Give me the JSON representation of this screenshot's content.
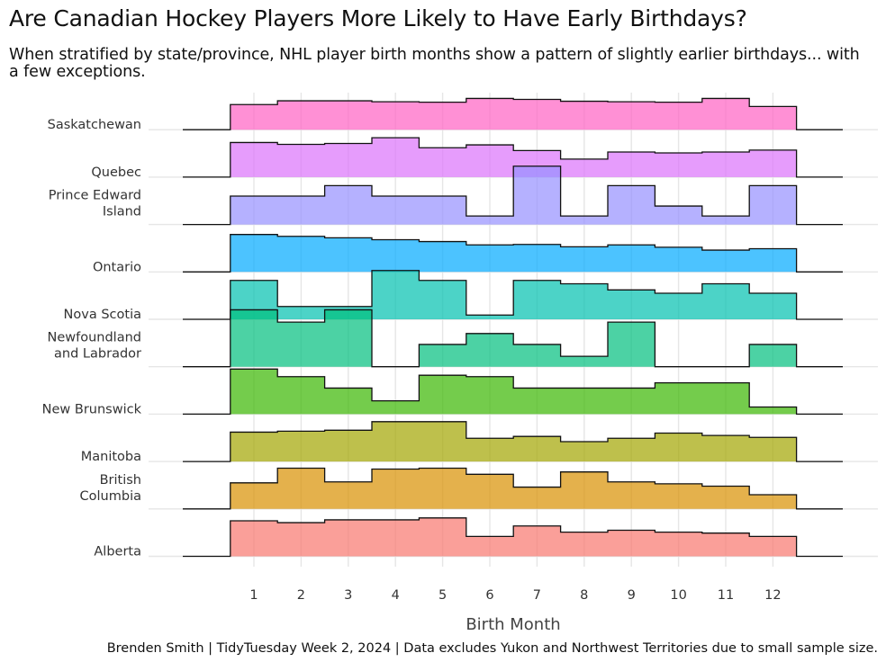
{
  "title": "Are Canadian Hockey Players More Likely to Have Early Birthdays?",
  "subtitle": "When stratified by state/province, NHL player birth months show a pattern of slightly earlier birthdays... with a few exceptions.",
  "caption": "Brenden Smith | TidyTuesday Week 2, 2024 | Data excludes Yukon and Northwest Territories due to small sample size.",
  "chart_data": {
    "type": "area",
    "subtype": "ridgeline-step",
    "xlabel": "Birth Month",
    "ylabel": "",
    "x": [
      1,
      2,
      3,
      4,
      5,
      6,
      7,
      8,
      9,
      10,
      11,
      12
    ],
    "xlim": [
      -0.5,
      13.5
    ],
    "grid": true,
    "value_unit": "relative density (ridge heights in units of row spacing)",
    "series": [
      {
        "name": "Saskatchewan",
        "color": "#FF61C3",
        "values": [
          0.53,
          0.61,
          0.61,
          0.59,
          0.58,
          0.66,
          0.64,
          0.6,
          0.59,
          0.58,
          0.66,
          0.49
        ]
      },
      {
        "name": "Quebec",
        "color": "#DB72FB",
        "values": [
          0.73,
          0.69,
          0.71,
          0.83,
          0.62,
          0.68,
          0.56,
          0.38,
          0.53,
          0.51,
          0.53,
          0.57
        ]
      },
      {
        "name": "Prince Edward Island",
        "color": "#9590FF",
        "values": [
          0.6,
          0.6,
          0.82,
          0.6,
          0.6,
          0.18,
          1.23,
          0.18,
          0.82,
          0.39,
          0.18,
          0.82
        ]
      },
      {
        "name": "Ontario",
        "color": "#00A9FF",
        "values": [
          0.79,
          0.75,
          0.72,
          0.68,
          0.64,
          0.57,
          0.58,
          0.53,
          0.57,
          0.52,
          0.46,
          0.49
        ]
      },
      {
        "name": "Nova Scotia",
        "color": "#00C0AF",
        "values": [
          0.82,
          0.27,
          0.27,
          1.03,
          0.82,
          0.09,
          0.82,
          0.75,
          0.62,
          0.55,
          0.75,
          0.55
        ]
      },
      {
        "name": "Newfoundland and Labrador",
        "color": "#00BF7D",
        "values": [
          1.2,
          0.94,
          1.2,
          0.0,
          0.47,
          0.7,
          0.47,
          0.22,
          0.94,
          0.0,
          0.0,
          0.47
        ]
      },
      {
        "name": "New Brunswick",
        "color": "#39B600",
        "values": [
          0.95,
          0.79,
          0.55,
          0.28,
          0.82,
          0.79,
          0.55,
          0.55,
          0.55,
          0.66,
          0.66,
          0.15
        ]
      },
      {
        "name": "Manitoba",
        "color": "#A3A500",
        "values": [
          0.62,
          0.64,
          0.66,
          0.84,
          0.84,
          0.49,
          0.53,
          0.42,
          0.49,
          0.6,
          0.55,
          0.51
        ]
      },
      {
        "name": "British Columbia",
        "color": "#D89000",
        "values": [
          0.55,
          0.86,
          0.57,
          0.84,
          0.86,
          0.73,
          0.46,
          0.78,
          0.57,
          0.53,
          0.48,
          0.3
        ]
      },
      {
        "name": "Alberta",
        "color": "#F8766D",
        "values": [
          0.75,
          0.71,
          0.77,
          0.77,
          0.81,
          0.42,
          0.64,
          0.51,
          0.55,
          0.51,
          0.49,
          0.42
        ]
      }
    ]
  }
}
